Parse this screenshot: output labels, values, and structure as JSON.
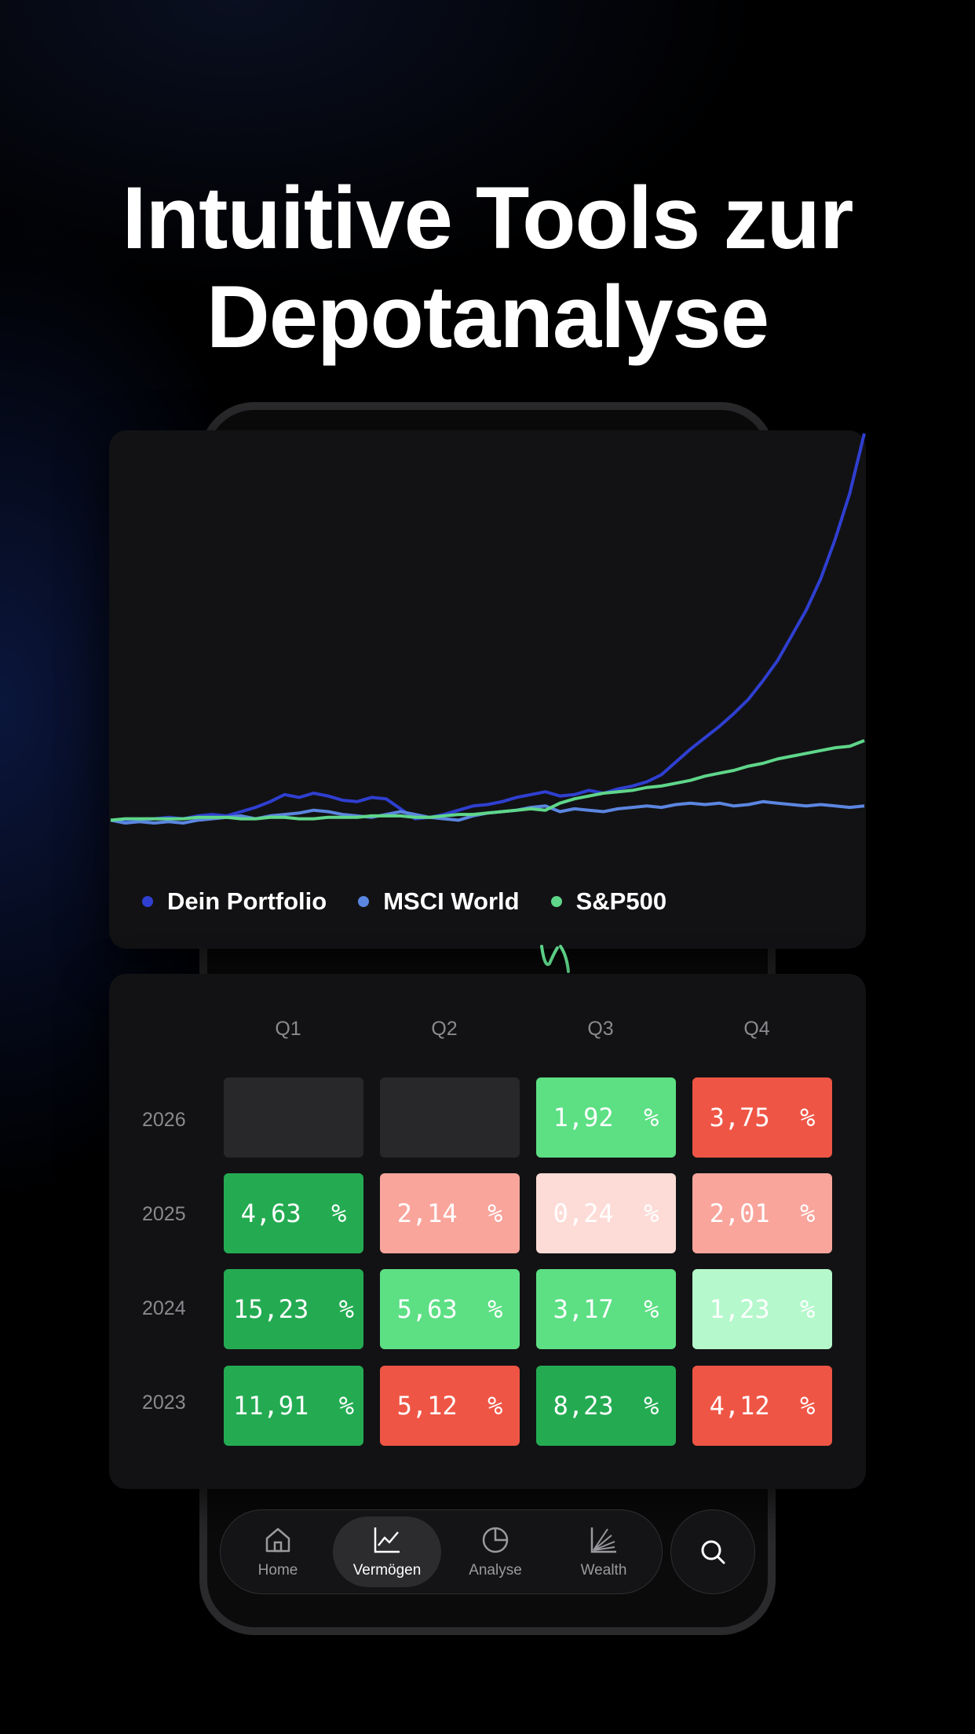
{
  "headline": {
    "line1": "Intuitive Tools zur",
    "line2": "Depotanalyse"
  },
  "chart_data": {
    "type": "line",
    "series": [
      {
        "name": "Dein Portfolio",
        "color": "#2f3fd1",
        "values": [
          100,
          99,
          100,
          101,
          102,
          101,
          103,
          104,
          103,
          106,
          109,
          113,
          118,
          116,
          119,
          117,
          114,
          113,
          116,
          115,
          108,
          101,
          102,
          104,
          107,
          110,
          111,
          113,
          116,
          118,
          120,
          117,
          118,
          121,
          119,
          122,
          124,
          127,
          132,
          141,
          150,
          158,
          166,
          175,
          185,
          198,
          212,
          230,
          248,
          270,
          298,
          330,
          372
        ]
      },
      {
        "name": "MSCI World",
        "color": "#5b86e0",
        "values": [
          100,
          98,
          99,
          98,
          99,
          98,
          100,
          101,
          102,
          103,
          101,
          103,
          104,
          105,
          107,
          106,
          104,
          103,
          102,
          104,
          106,
          104,
          102,
          101,
          100,
          103,
          105,
          106,
          107,
          109,
          110,
          106,
          108,
          107,
          106,
          108,
          109,
          110,
          109,
          111,
          112,
          111,
          112,
          110,
          111,
          113,
          112,
          111,
          110,
          111,
          110,
          109,
          110
        ]
      },
      {
        "name": "S&P500",
        "color": "#5fd68a",
        "values": [
          100,
          101,
          101,
          101,
          101,
          101,
          102,
          102,
          102,
          101,
          101,
          102,
          102,
          101,
          101,
          102,
          102,
          102,
          103,
          103,
          103,
          102,
          102,
          103,
          104,
          104,
          105,
          106,
          107,
          108,
          107,
          112,
          115,
          117,
          119,
          120,
          121,
          123,
          124,
          126,
          128,
          131,
          133,
          135,
          138,
          140,
          143,
          145,
          147,
          149,
          151,
          152,
          156
        ]
      }
    ]
  },
  "quarters": [
    "Q1",
    "Q2",
    "Q3",
    "Q4"
  ],
  "returns_table": [
    {
      "year": "2026",
      "cells": [
        {
          "value": "",
          "color": "#28282b"
        },
        {
          "value": "",
          "color": "#28282b"
        },
        {
          "value": "1,92  %",
          "color": "#5ddf84"
        },
        {
          "value": "3,75  %",
          "color": "#ef5545"
        }
      ]
    },
    {
      "year": "2025",
      "cells": [
        {
          "value": "4,63  %",
          "color": "#24ab52"
        },
        {
          "value": "2,14  %",
          "color": "#f9a59c"
        },
        {
          "value": "0,24  %",
          "color": "#fddcd7"
        },
        {
          "value": "2,01  %",
          "color": "#f9a59c"
        }
      ]
    },
    {
      "year": "2024",
      "cells": [
        {
          "value": "15,23  %",
          "color": "#24ab52"
        },
        {
          "value": "5,63  %",
          "color": "#5ddf84"
        },
        {
          "value": "3,17  %",
          "color": "#5ddf84"
        },
        {
          "value": "1,23  %",
          "color": "#b5f8cc"
        }
      ]
    },
    {
      "year": "2023",
      "cells": [
        {
          "value": "11,91  %",
          "color": "#24ab52"
        },
        {
          "value": "5,12  %",
          "color": "#ef5545"
        },
        {
          "value": "8,23  %",
          "color": "#24ab52"
        },
        {
          "value": "4,12  %",
          "color": "#ef5545"
        }
      ]
    }
  ],
  "nav": {
    "items": [
      {
        "label": "Home",
        "icon": "home-icon"
      },
      {
        "label": "Vermögen",
        "icon": "line-chart-icon",
        "active": true
      },
      {
        "label": "Analyse",
        "icon": "pie-chart-icon"
      },
      {
        "label": "Wealth",
        "icon": "wealth-chart-icon"
      }
    ],
    "search_icon": "search-icon"
  }
}
